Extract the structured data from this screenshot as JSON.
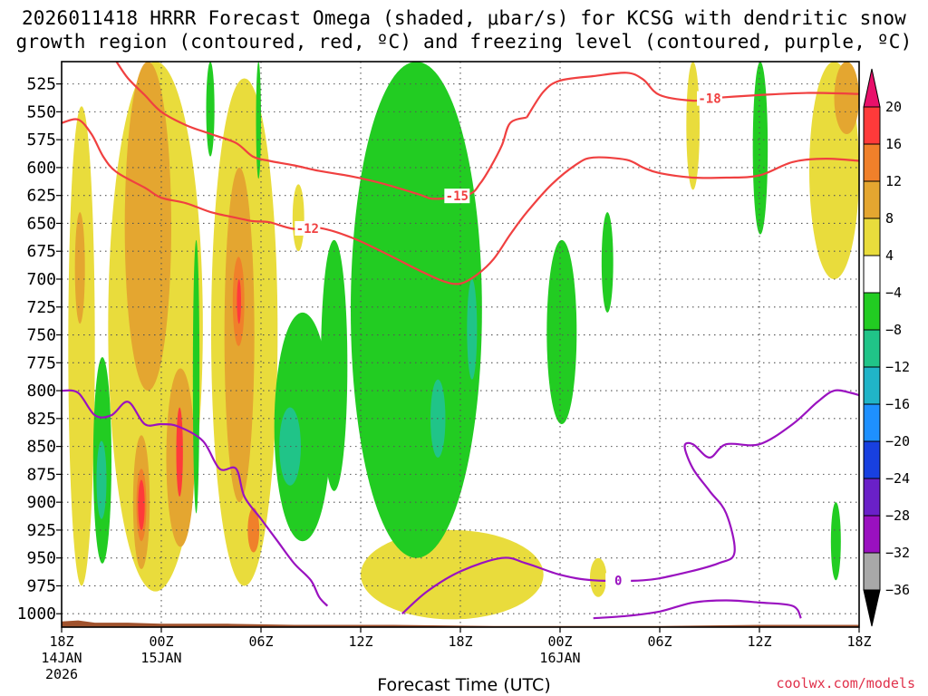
{
  "chart_data": {
    "type": "heatmap",
    "title_line1": "2026011418 HRRR Forecast Omega (shaded, μbar/s) for KCSG with dendritic snow",
    "title_line2": "growth region (contoured, red, ºC) and freezing level (contoured, purple, ºC)",
    "xlabel": "Forecast Time (UTC)",
    "credit": "coolwx.com/models",
    "x_hours_range": [
      0,
      48
    ],
    "ylim_hpa": [
      1012,
      500
    ],
    "x_ticks": [
      {
        "h": 0,
        "line1": "18Z",
        "line2": "14JAN",
        "line3": "2026"
      },
      {
        "h": 6,
        "line1": "00Z",
        "line2": "15JAN",
        "line3": ""
      },
      {
        "h": 12,
        "line1": "06Z",
        "line2": "",
        "line3": ""
      },
      {
        "h": 18,
        "line1": "12Z",
        "line2": "",
        "line3": ""
      },
      {
        "h": 24,
        "line1": "18Z",
        "line2": "",
        "line3": ""
      },
      {
        "h": 30,
        "line1": "00Z",
        "line2": "16JAN",
        "line3": ""
      },
      {
        "h": 36,
        "line1": "06Z",
        "line2": "",
        "line3": ""
      },
      {
        "h": 42,
        "line1": "12Z",
        "line2": "",
        "line3": ""
      },
      {
        "h": 48,
        "line1": "18Z",
        "line2": "",
        "line3": ""
      }
    ],
    "y_ticks": [
      "525",
      "550",
      "575",
      "600",
      "625",
      "650",
      "675",
      "700",
      "725",
      "750",
      "775",
      "800",
      "825",
      "850",
      "875",
      "900",
      "925",
      "950",
      "975",
      "1000"
    ],
    "colorbar": {
      "labels": [
        "20",
        "16",
        "12",
        "8",
        "4",
        "−4",
        "−8",
        "−12",
        "−16",
        "−20",
        "−24",
        "−28",
        "−32",
        "−36"
      ],
      "bins": [
        {
          "from": 16,
          "to": 20,
          "color": "#ff3a3a"
        },
        {
          "from": 12,
          "to": 16,
          "color": "#f0802a"
        },
        {
          "from": 8,
          "to": 12,
          "color": "#e4a630"
        },
        {
          "from": 4,
          "to": 8,
          "color": "#e9dc3c"
        },
        {
          "from": -4,
          "to": 4,
          "color": "#ffffff"
        },
        {
          "from": -8,
          "to": -4,
          "color": "#22cc22"
        },
        {
          "from": -12,
          "to": -8,
          "color": "#20c488"
        },
        {
          "from": -16,
          "to": -12,
          "color": "#20b4c8"
        },
        {
          "from": -20,
          "to": -16,
          "color": "#1e90ff"
        },
        {
          "from": -24,
          "to": -20,
          "color": "#1840e0"
        },
        {
          "from": -28,
          "to": -24,
          "color": "#6a20c8"
        },
        {
          "from": -32,
          "to": -28,
          "color": "#9a10c0"
        },
        {
          "from": -36,
          "to": -32,
          "color": "#a8a8a8"
        }
      ],
      "top_arrow_color": "#e8106a",
      "bottom_arrow_color": "#000000"
    },
    "omega_regions": [
      {
        "value": 6,
        "h": [
          0.4,
          2.0
        ],
        "p": [
          545,
          975
        ],
        "color": "#e9dc3c"
      },
      {
        "value": 10,
        "h": [
          0.8,
          1.4
        ],
        "p": [
          640,
          740
        ],
        "color": "#e4a630"
      },
      {
        "value": 6,
        "h": [
          2.8,
          8.5
        ],
        "p": [
          505,
          980
        ],
        "color": "#e9dc3c"
      },
      {
        "value": 10,
        "h": [
          3.8,
          6.6
        ],
        "p": [
          505,
          800
        ],
        "color": "#e4a630"
      },
      {
        "value": 10,
        "h": [
          4.3,
          5.3
        ],
        "p": [
          840,
          960
        ],
        "color": "#e4a630"
      },
      {
        "value": 14,
        "h": [
          4.5,
          5.1
        ],
        "p": [
          870,
          935
        ],
        "color": "#f0802a"
      },
      {
        "value": 18,
        "h": [
          4.6,
          5.0
        ],
        "p": [
          880,
          925
        ],
        "color": "#ff3a3a"
      },
      {
        "value": 10,
        "h": [
          6.3,
          8.0
        ],
        "p": [
          780,
          940
        ],
        "color": "#e4a630"
      },
      {
        "value": 18,
        "h": [
          6.9,
          7.3
        ],
        "p": [
          815,
          895
        ],
        "color": "#ff3a3a"
      },
      {
        "value": 6,
        "h": [
          9.0,
          13.0
        ],
        "p": [
          520,
          975
        ],
        "color": "#e9dc3c"
      },
      {
        "value": 10,
        "h": [
          9.8,
          11.6
        ],
        "p": [
          600,
          900
        ],
        "color": "#e4a630"
      },
      {
        "value": 14,
        "h": [
          10.3,
          11.0
        ],
        "p": [
          680,
          760
        ],
        "color": "#f0802a"
      },
      {
        "value": 18,
        "h": [
          10.55,
          10.8
        ],
        "p": [
          700,
          740
        ],
        "color": "#ff3a3a"
      },
      {
        "value": 14,
        "h": [
          11.2,
          11.9
        ],
        "p": [
          905,
          945
        ],
        "color": "#f0802a"
      },
      {
        "value": 6,
        "h": [
          13.9,
          14.6
        ],
        "p": [
          615,
          675
        ],
        "color": "#e9dc3c"
      },
      {
        "value": 6,
        "h": [
          18.0,
          29.0
        ],
        "p": [
          925,
          1005
        ],
        "color": "#e9dc3c"
      },
      {
        "value": 6,
        "h": [
          31.8,
          32.8
        ],
        "p": [
          950,
          985
        ],
        "color": "#e9dc3c"
      },
      {
        "value": 6,
        "h": [
          37.6,
          38.4
        ],
        "p": [
          505,
          620
        ],
        "color": "#e9dc3c"
      },
      {
        "value": 6,
        "h": [
          45.0,
          48.0
        ],
        "p": [
          505,
          700
        ],
        "color": "#e9dc3c"
      },
      {
        "value": 10,
        "h": [
          46.5,
          48.0
        ],
        "p": [
          505,
          570
        ],
        "color": "#e4a630"
      },
      {
        "value": -6,
        "h": [
          1.9,
          3.0
        ],
        "p": [
          770,
          955
        ],
        "color": "#22cc22"
      },
      {
        "value": -10,
        "h": [
          2.1,
          2.7
        ],
        "p": [
          845,
          915
        ],
        "color": "#20c488"
      },
      {
        "value": -6,
        "h": [
          7.9,
          8.3
        ],
        "p": [
          665,
          910
        ],
        "color": "#22cc22"
      },
      {
        "value": -6,
        "h": [
          8.7,
          9.2
        ],
        "p": [
          505,
          590
        ],
        "color": "#22cc22"
      },
      {
        "value": -6,
        "h": [
          11.7,
          12.0
        ],
        "p": [
          505,
          610
        ],
        "color": "#22cc22"
      },
      {
        "value": -6,
        "h": [
          12.8,
          16.2
        ],
        "p": [
          730,
          935
        ],
        "color": "#22cc22"
      },
      {
        "value": -10,
        "h": [
          13.1,
          14.4
        ],
        "p": [
          815,
          885
        ],
        "color": "#20c488"
      },
      {
        "value": -6,
        "h": [
          15.6,
          17.2
        ],
        "p": [
          665,
          890
        ],
        "color": "#22cc22"
      },
      {
        "value": -6,
        "h": [
          17.4,
          25.3
        ],
        "p": [
          505,
          950
        ],
        "color": "#22cc22"
      },
      {
        "value": -10,
        "h": [
          22.2,
          23.1
        ],
        "p": [
          790,
          860
        ],
        "color": "#20c488"
      },
      {
        "value": -10,
        "h": [
          24.4,
          25.0
        ],
        "p": [
          700,
          790
        ],
        "color": "#20c488"
      },
      {
        "value": -6,
        "h": [
          29.2,
          31.0
        ],
        "p": [
          665,
          830
        ],
        "color": "#22cc22"
      },
      {
        "value": -6,
        "h": [
          32.5,
          33.2
        ],
        "p": [
          640,
          730
        ],
        "color": "#22cc22"
      },
      {
        "value": -6,
        "h": [
          41.6,
          42.5
        ],
        "p": [
          505,
          660
        ],
        "color": "#22cc22"
      },
      {
        "value": -6,
        "h": [
          46.3,
          46.9
        ],
        "p": [
          900,
          970
        ],
        "color": "#22cc22"
      }
    ],
    "terrain": {
      "color": "#a0522d",
      "profile": [
        [
          0,
          1007
        ],
        [
          1,
          1006
        ],
        [
          2,
          1008
        ],
        [
          4,
          1008
        ],
        [
          6,
          1009
        ],
        [
          10,
          1009
        ],
        [
          14,
          1010
        ],
        [
          20,
          1010
        ],
        [
          26,
          1011
        ],
        [
          30,
          1011
        ],
        [
          36,
          1011
        ],
        [
          42,
          1010
        ],
        [
          48,
          1010
        ]
      ]
    },
    "red_isotherms": [
      {
        "label": "-18",
        "label_h": 39.0,
        "color": "#f04040",
        "points": [
          [
            28.0,
            555
          ],
          [
            29.0,
            532
          ],
          [
            30.0,
            522
          ],
          [
            32.0,
            518
          ],
          [
            34.0,
            515
          ],
          [
            35.0,
            521
          ],
          [
            36.0,
            535
          ],
          [
            38.0,
            540
          ],
          [
            39.0,
            538
          ],
          [
            42.0,
            535
          ],
          [
            45.0,
            533
          ],
          [
            48.0,
            534
          ]
        ]
      },
      {
        "label": "-15",
        "label_h": 23.8,
        "color": "#f04040",
        "points": [
          [
            3.3,
            505
          ],
          [
            4.0,
            520
          ],
          [
            5.0,
            535
          ],
          [
            6.0,
            550
          ],
          [
            7.5,
            562
          ],
          [
            9.0,
            570
          ],
          [
            10.5,
            578
          ],
          [
            11.5,
            590
          ],
          [
            12.5,
            594
          ],
          [
            14.0,
            598
          ],
          [
            15.5,
            603
          ],
          [
            17.5,
            608
          ],
          [
            19.5,
            615
          ],
          [
            21.5,
            624
          ],
          [
            22.5,
            628
          ],
          [
            24.5,
            624
          ],
          [
            25.2,
            614
          ],
          [
            25.8,
            600
          ],
          [
            26.5,
            580
          ],
          [
            27.0,
            560
          ],
          [
            28.0,
            555
          ]
        ]
      },
      {
        "label": "-12",
        "label_h": 14.8,
        "color": "#f04040",
        "points": [
          [
            0.0,
            560
          ],
          [
            1.0,
            557
          ],
          [
            1.8,
            570
          ],
          [
            2.5,
            590
          ],
          [
            3.3,
            604
          ],
          [
            5.0,
            618
          ],
          [
            6.0,
            627
          ],
          [
            7.5,
            632
          ],
          [
            9.0,
            640
          ],
          [
            10.5,
            645
          ],
          [
            11.5,
            648
          ],
          [
            12.5,
            649
          ],
          [
            14.0,
            655
          ],
          [
            15.5,
            654
          ],
          [
            17.5,
            663
          ],
          [
            19.5,
            677
          ],
          [
            21.5,
            692
          ],
          [
            23.0,
            702
          ],
          [
            24.0,
            704
          ],
          [
            25.0,
            696
          ],
          [
            26.0,
            682
          ],
          [
            27.0,
            660
          ],
          [
            28.0,
            640
          ],
          [
            29.5,
            615
          ],
          [
            31.0,
            597
          ],
          [
            32.0,
            591
          ],
          [
            34.0,
            593
          ],
          [
            35.0,
            600
          ],
          [
            36.0,
            605
          ],
          [
            38.0,
            609
          ],
          [
            40.0,
            609
          ],
          [
            42.0,
            607
          ],
          [
            44.0,
            595
          ],
          [
            46.0,
            592
          ],
          [
            48.0,
            594
          ]
        ]
      }
    ],
    "freezing_level": {
      "label": "0",
      "label_h": 33.5,
      "color": "#9a12c0",
      "points": [
        [
          0.0,
          800
        ],
        [
          1.0,
          802
        ],
        [
          2.0,
          822
        ],
        [
          3.0,
          822
        ],
        [
          4.0,
          810
        ],
        [
          5.0,
          830
        ],
        [
          6.0,
          830
        ],
        [
          7.0,
          832
        ],
        [
          8.5,
          845
        ],
        [
          9.5,
          870
        ],
        [
          10.5,
          870
        ],
        [
          11.0,
          895
        ],
        [
          12.0,
          915
        ],
        [
          13.0,
          935
        ],
        [
          14.0,
          955
        ],
        [
          15.0,
          970
        ],
        [
          15.5,
          985
        ],
        [
          16.0,
          993
        ]
      ],
      "points2": [
        [
          20.5,
          1000
        ],
        [
          22.0,
          980
        ],
        [
          24.0,
          962
        ],
        [
          26.5,
          950
        ],
        [
          28.0,
          955
        ],
        [
          30.0,
          965
        ],
        [
          32.0,
          970
        ],
        [
          35.0,
          970
        ],
        [
          37.0,
          965
        ],
        [
          39.5,
          955
        ],
        [
          40.5,
          945
        ],
        [
          40.0,
          910
        ],
        [
          39.0,
          890
        ],
        [
          38.0,
          870
        ],
        [
          37.5,
          850
        ],
        [
          38.0,
          848
        ],
        [
          39.0,
          860
        ],
        [
          40.0,
          848
        ],
        [
          42.0,
          848
        ],
        [
          44.0,
          830
        ],
        [
          45.5,
          810
        ],
        [
          46.5,
          800
        ],
        [
          47.5,
          802
        ],
        [
          48.0,
          804
        ]
      ],
      "points3": [
        [
          32.0,
          1004
        ],
        [
          34.0,
          1002
        ],
        [
          36.0,
          998
        ],
        [
          38.0,
          990
        ],
        [
          40.0,
          988
        ],
        [
          42.0,
          990
        ],
        [
          44.0,
          993
        ],
        [
          44.5,
          1004
        ]
      ]
    }
  }
}
